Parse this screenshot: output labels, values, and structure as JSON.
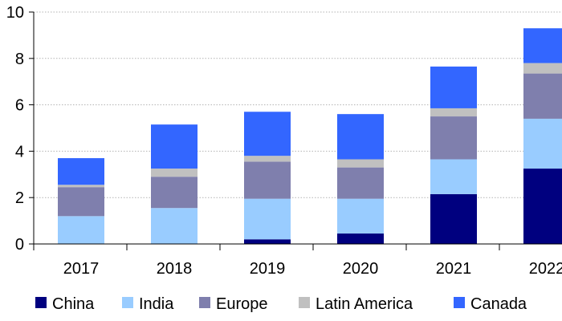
{
  "chart_data": {
    "type": "bar",
    "stacked": true,
    "categories": [
      "2017",
      "2018",
      "2019",
      "2020",
      "2021",
      "2022"
    ],
    "series": [
      {
        "name": "China",
        "color": "#00007f",
        "values": [
          0.0,
          0.0,
          0.2,
          0.45,
          2.15,
          3.25
        ]
      },
      {
        "name": "India",
        "color": "#99ccff",
        "values": [
          1.2,
          1.55,
          1.75,
          1.5,
          1.5,
          2.15
        ]
      },
      {
        "name": "Europe",
        "color": "#7f7fad",
        "values": [
          1.25,
          1.35,
          1.6,
          1.35,
          1.85,
          1.95
        ]
      },
      {
        "name": "Latin America",
        "color": "#c0c0c0",
        "values": [
          0.1,
          0.35,
          0.25,
          0.35,
          0.35,
          0.45
        ]
      },
      {
        "name": "Canada",
        "color": "#3366ff",
        "values": [
          1.15,
          1.9,
          1.9,
          1.95,
          1.8,
          1.5
        ]
      }
    ],
    "ylim": [
      0,
      10
    ],
    "yticks": [
      "0",
      "2",
      "4",
      "6",
      "8",
      "10"
    ],
    "grid": true,
    "legend_position": "bottom",
    "title": "",
    "xlabel": "",
    "ylabel": ""
  }
}
